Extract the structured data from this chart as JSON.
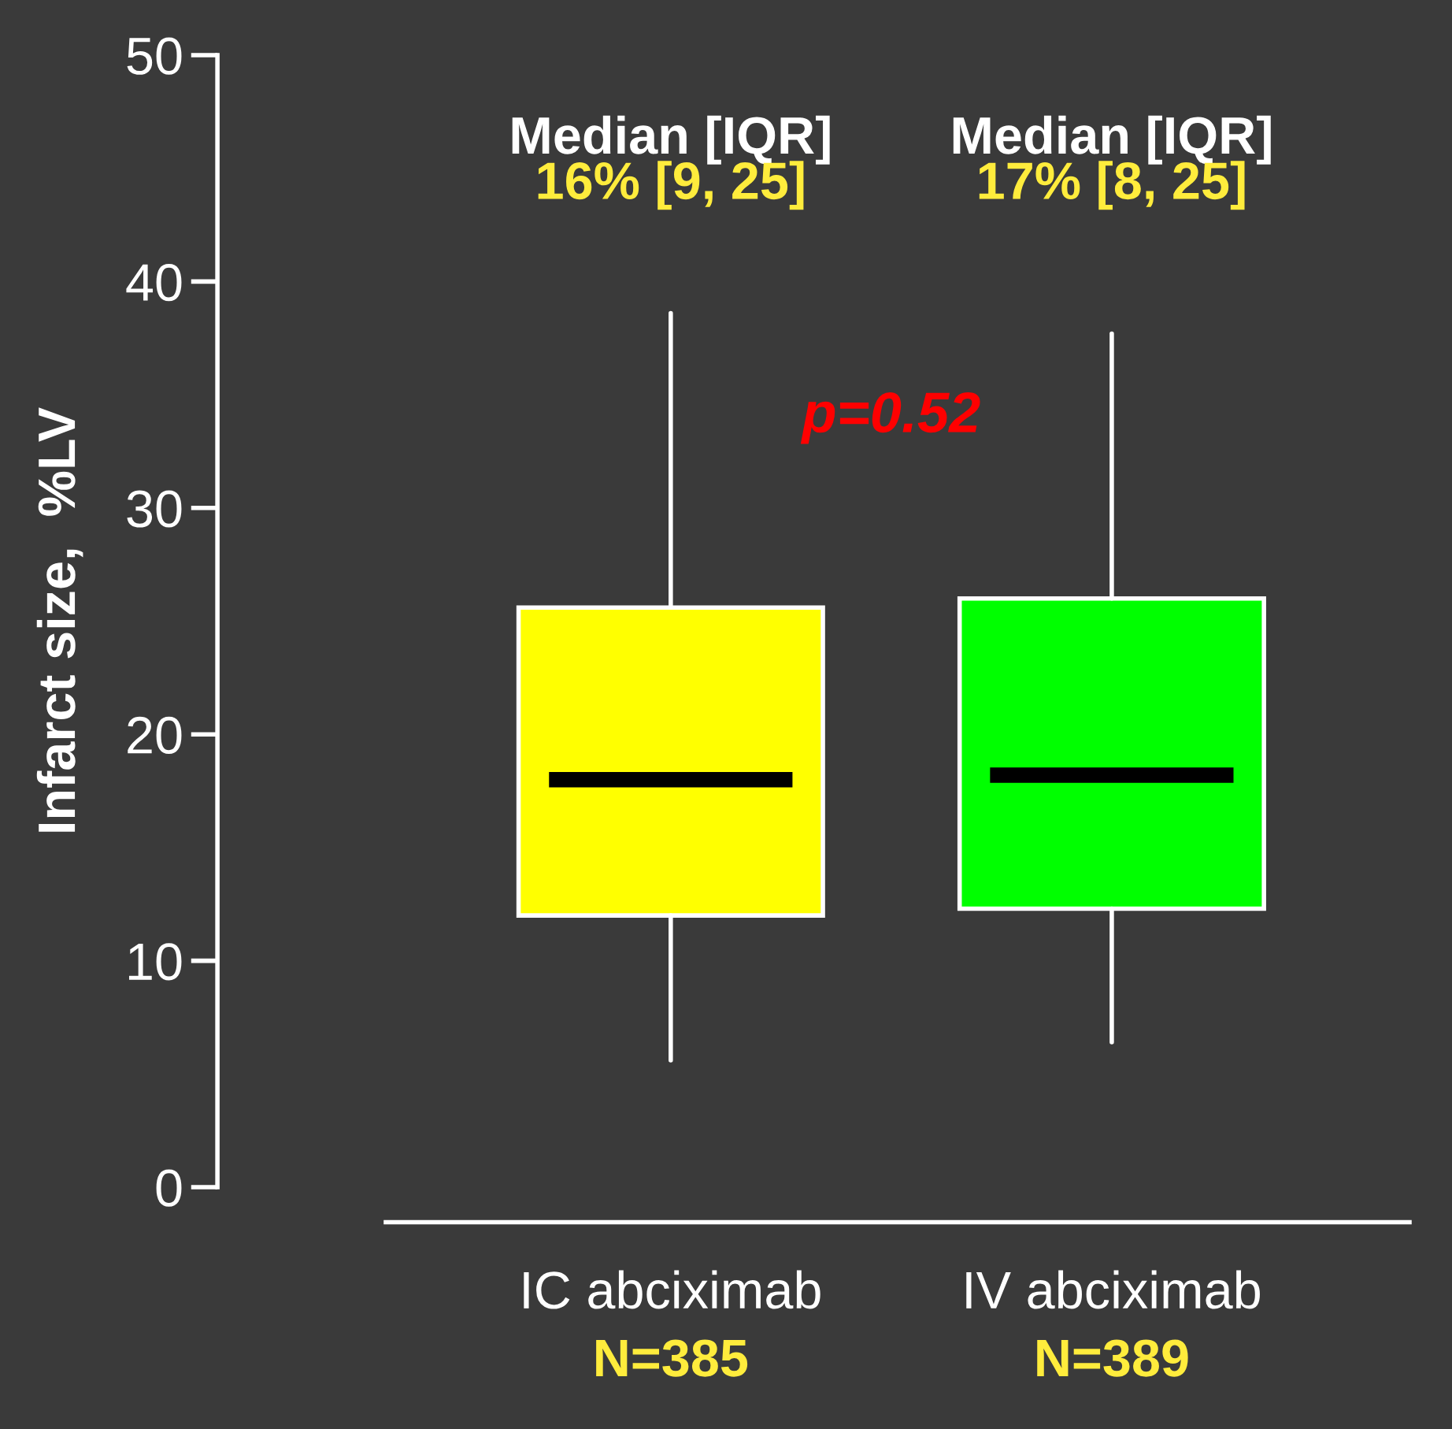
{
  "chart_data": {
    "type": "box",
    "categories": [
      "IC abciximab",
      "IV abciximab"
    ],
    "boxes": [
      {
        "low": 5.6,
        "q1": 12.0,
        "median": 18.0,
        "q3": 25.6,
        "high": 38.6
      },
      {
        "low": 6.4,
        "q1": 12.3,
        "median": 18.2,
        "q3": 26.0,
        "high": 37.7
      }
    ],
    "colors": [
      "#ffff00",
      "#00ff00"
    ],
    "ylabel": "Infarct size,  %LV",
    "ylim": [
      0,
      50
    ],
    "yticks": [
      0,
      10,
      20,
      30,
      40,
      50
    ],
    "grid": false,
    "legend": false,
    "annotations": [
      "Median [IQR]",
      "16% [9, 25]",
      "Median [IQR]",
      "17% [8, 25]",
      "p=0.52",
      "N=385",
      "N=389"
    ]
  }
}
